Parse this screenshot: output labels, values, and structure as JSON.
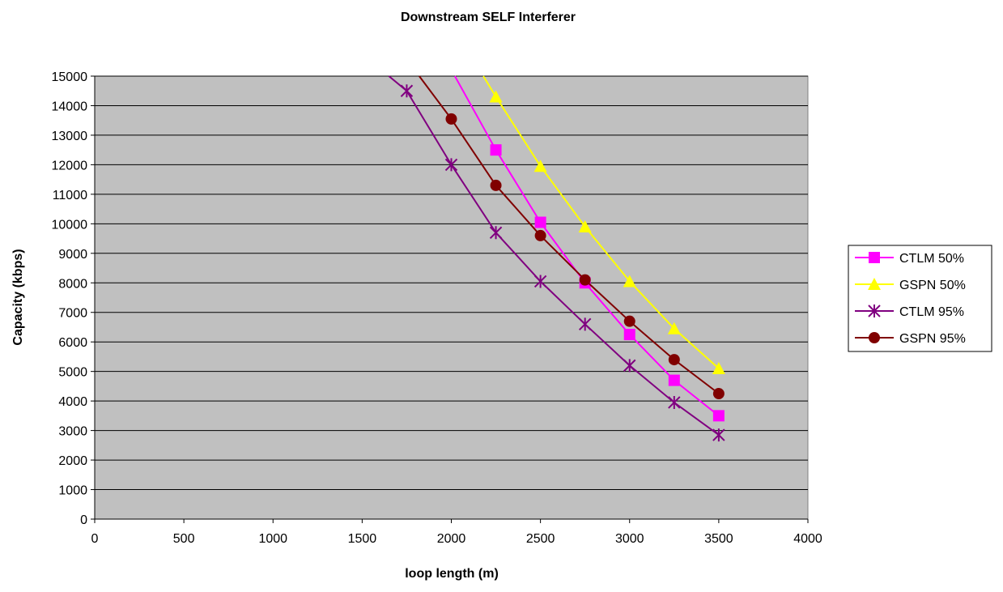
{
  "chart_data": {
    "type": "line",
    "title": "Downstream SELF Interferer",
    "xlabel": "loop length (m)",
    "ylabel": "Capacity (kbps)",
    "xlim": [
      0,
      4000
    ],
    "ylim": [
      0,
      15000
    ],
    "xticks": [
      0,
      500,
      1000,
      1500,
      2000,
      2500,
      3000,
      3500,
      4000
    ],
    "yticks": [
      0,
      1000,
      2000,
      3000,
      4000,
      5000,
      6000,
      7000,
      8000,
      9000,
      10000,
      11000,
      12000,
      13000,
      14000,
      15000
    ],
    "grid": "horizontal",
    "plot_background": "#C0C0C0",
    "legend_position": "right",
    "series": [
      {
        "name": "CTLM 50%",
        "color": "#FF00FF",
        "marker": "square",
        "x": [
          2250,
          2500,
          2750,
          3000,
          3250,
          3500
        ],
        "y": [
          12500,
          10050,
          8000,
          6250,
          4700,
          3500
        ],
        "line_extends_to": [
          2020,
          15000
        ]
      },
      {
        "name": "GSPN 50%",
        "color": "#FFFF00",
        "marker": "triangle",
        "x": [
          2250,
          2500,
          2750,
          3000,
          3250,
          3500
        ],
        "y": [
          14300,
          11950,
          9900,
          8050,
          6450,
          5100
        ],
        "line_extends_to": [
          2180,
          15000
        ]
      },
      {
        "name": "CTLM 95%",
        "color": "#800080",
        "marker": "asterisk",
        "x": [
          1750,
          2000,
          2250,
          2500,
          2750,
          3000,
          3250,
          3500
        ],
        "y": [
          14500,
          12000,
          9700,
          8050,
          6600,
          5200,
          3950,
          2850
        ],
        "line_extends_to": [
          1650,
          15000
        ]
      },
      {
        "name": "GSPN 95%",
        "color": "#800000",
        "marker": "circle",
        "x": [
          2000,
          2250,
          2500,
          2750,
          3000,
          3250,
          3500
        ],
        "y": [
          13550,
          11300,
          9600,
          8100,
          6700,
          5400,
          4250
        ],
        "line_extends_to": [
          1820,
          15000
        ]
      }
    ]
  }
}
